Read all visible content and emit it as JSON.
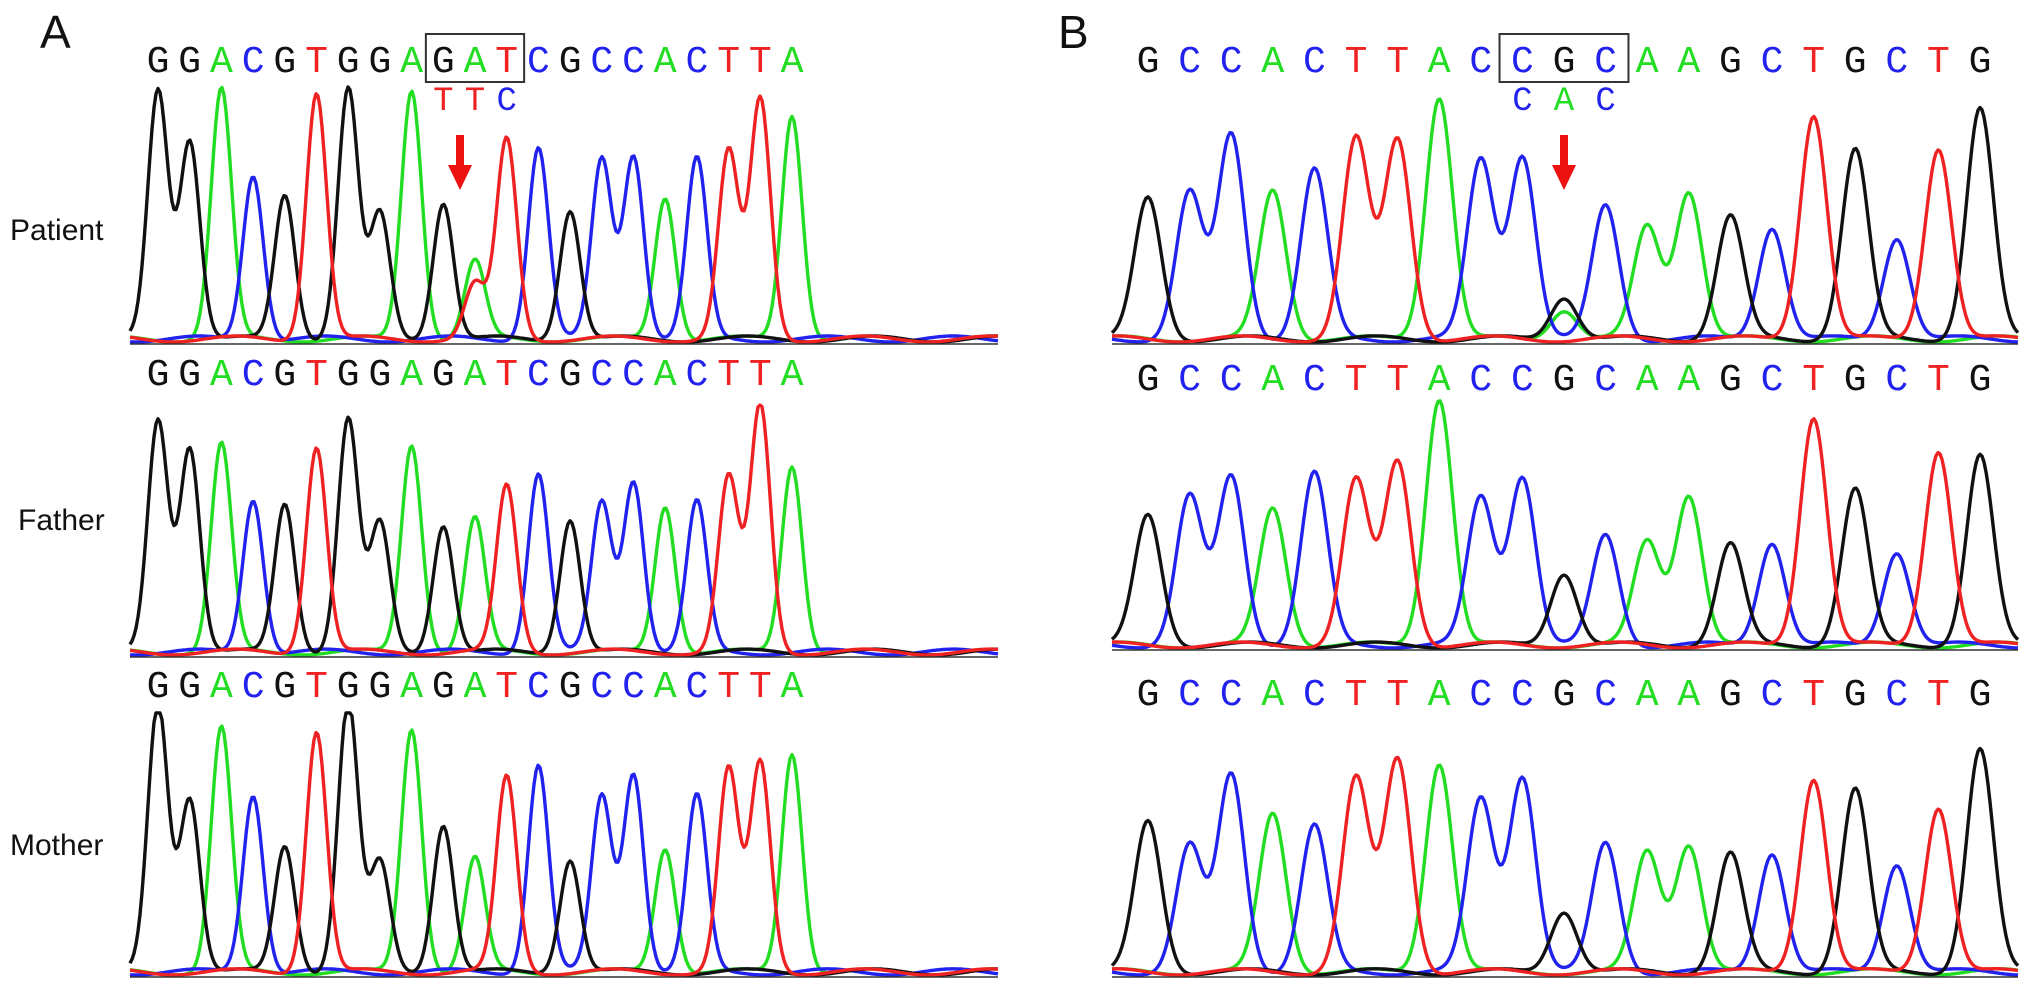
{
  "colors": {
    "A": "#22dd22",
    "C": "#2222ee",
    "G": "#111111",
    "T": "#ee2222",
    "arrow": "#ee1111",
    "box": "#333333"
  },
  "panels": [
    {
      "letter": "A",
      "rows": [
        {
          "label": "Patient",
          "sequence": "GGACGTGGAGATCGCCACTTA"
        },
        {
          "label": "Father",
          "sequence": "GGACGTGGAGATCGCCACTTA"
        },
        {
          "label": "Mother",
          "sequence": "GGACGTGGAGATCGCCACTTA"
        }
      ],
      "codon_box_start": 9,
      "alt_codon": "TTC",
      "variant_index": 10,
      "secondary_base": "T"
    },
    {
      "letter": "B",
      "rows": [
        {
          "label": "",
          "sequence": "GCCACTTACCGCAAGCTGCTG"
        },
        {
          "label": "",
          "sequence": "GCCACTTACCGCAAGCTGCTG"
        },
        {
          "label": "",
          "sequence": "GCCACTTACCGCAAGCTGCTG"
        }
      ],
      "codon_box_start": 9,
      "alt_codon": "CAC",
      "variant_index": 10,
      "secondary_base": "A"
    }
  ]
}
